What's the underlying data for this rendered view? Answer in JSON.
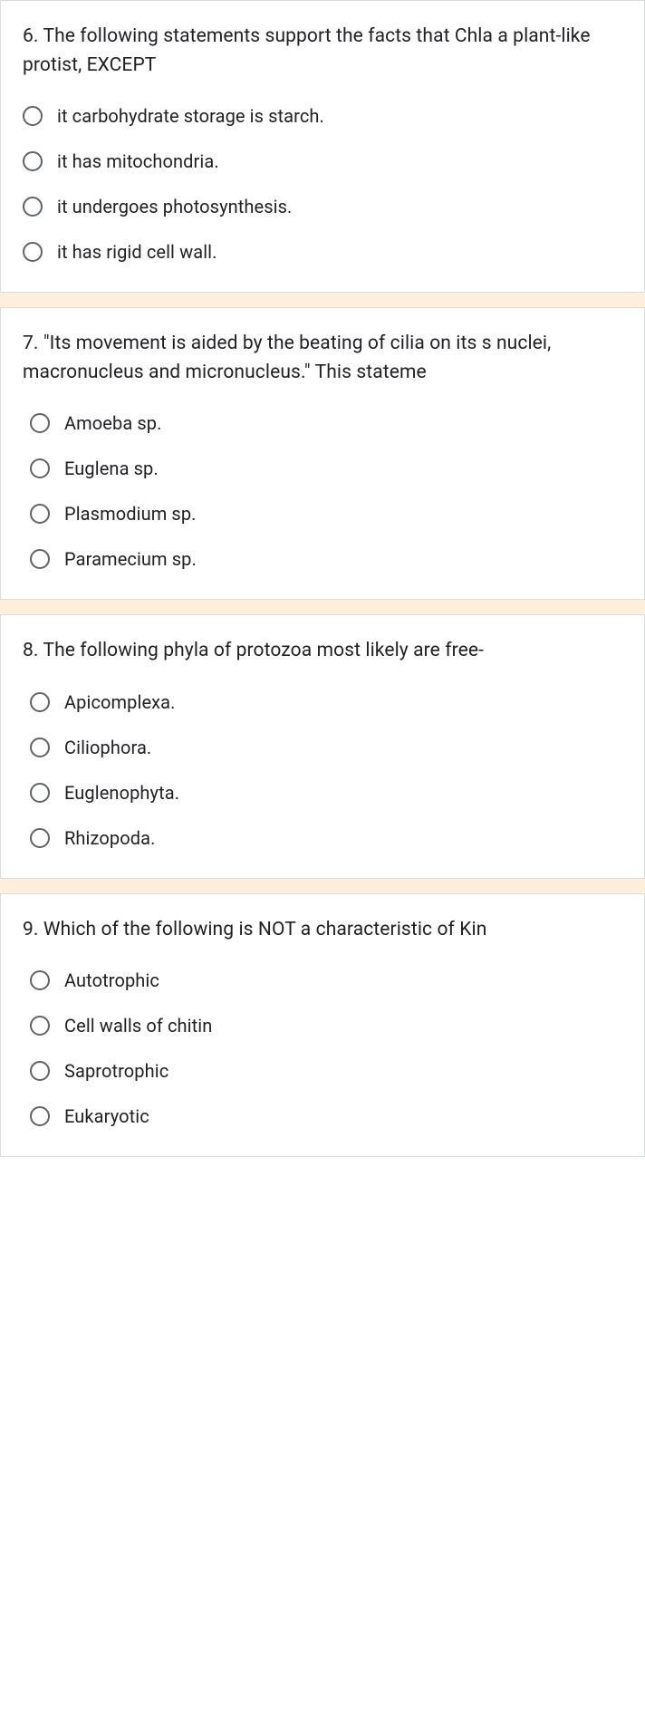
{
  "colors": {
    "text": "#202124",
    "radio_border": "#5f6368",
    "card_border": "#dadce0",
    "card_bg": "#ffffff",
    "divider_bg": "#fdefdb"
  },
  "typography": {
    "font_family": "Roboto, Arial, sans-serif",
    "question_fontsize": 21,
    "option_fontsize": 20
  },
  "questions": [
    {
      "number": 6,
      "prompt": "6. The following statements support the facts that Chla a plant-like protist, EXCEPT",
      "indent": false,
      "options": [
        "it carbohydrate storage is starch.",
        "it has mitochondria.",
        "it undergoes photosynthesis.",
        "it has rigid cell wall."
      ]
    },
    {
      "number": 7,
      "prompt": "7. \"Its movement is aided by the beating of cilia on its s nuclei, macronucleus and micronucleus.\" This stateme",
      "indent": true,
      "options": [
        "Amoeba sp.",
        "Euglena sp.",
        "Plasmodium sp.",
        "Paramecium sp."
      ]
    },
    {
      "number": 8,
      "prompt": "8. The following phyla of protozoa most likely are free-",
      "indent": true,
      "options": [
        "Apicomplexa.",
        "Ciliophora.",
        "Euglenophyta.",
        "Rhizopoda."
      ]
    },
    {
      "number": 9,
      "prompt": "9. Which of the following is NOT a characteristic of Kin",
      "indent": true,
      "options": [
        "Autotrophic",
        "Cell walls of chitin",
        "Saprotrophic",
        "Eukaryotic"
      ]
    }
  ]
}
